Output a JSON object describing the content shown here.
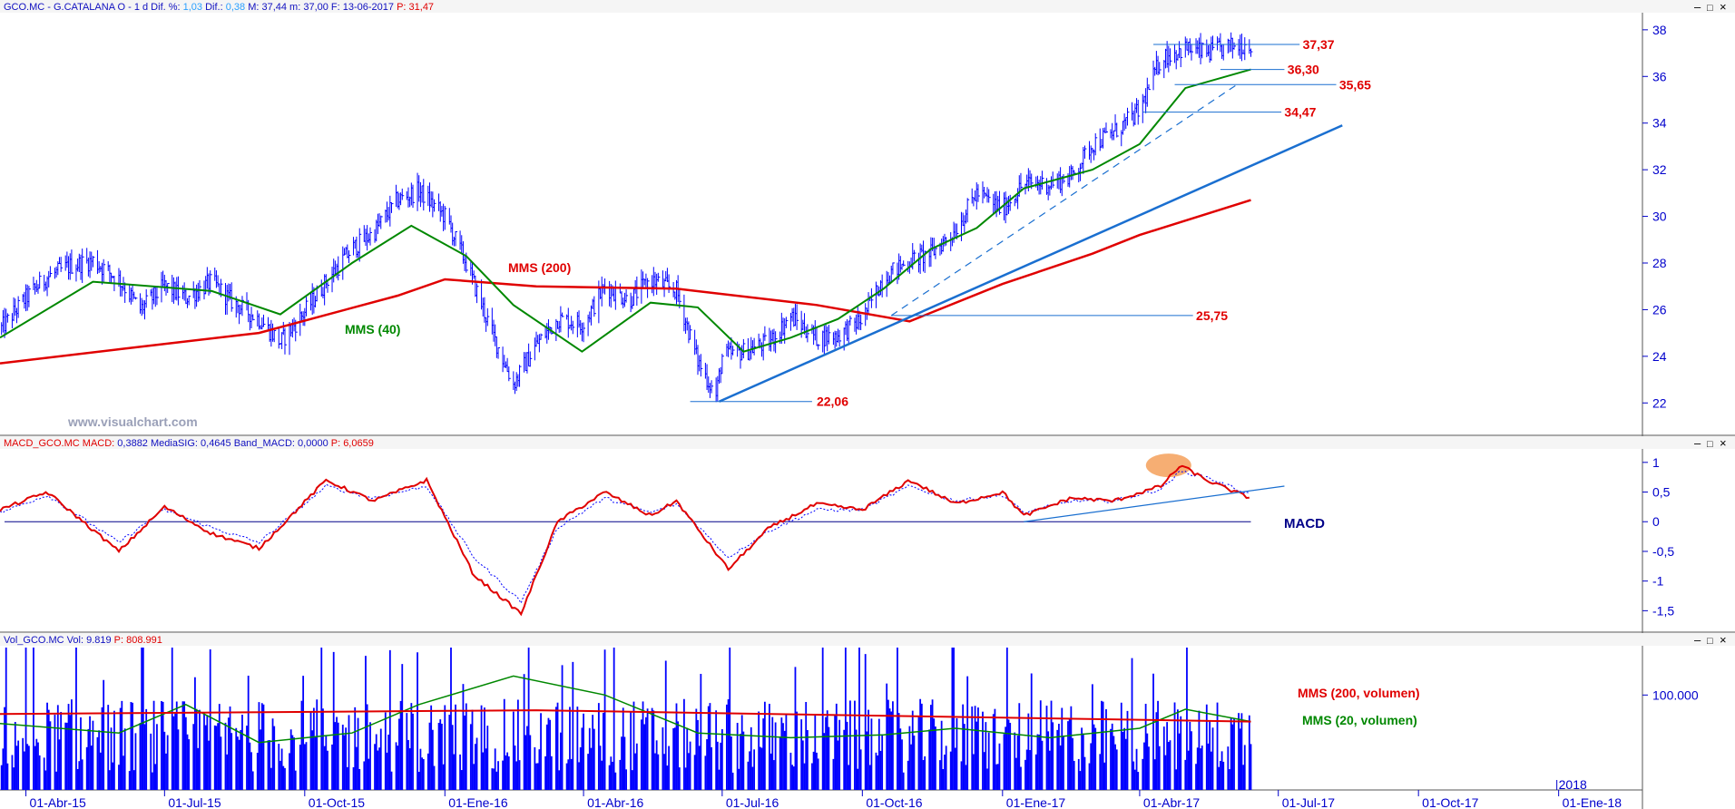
{
  "colors": {
    "blue": "#0000ff",
    "red": "#e00000",
    "green": "#008800",
    "axis": "#0000cc",
    "trend": "#1a6fd0",
    "orange": "#f5a05a",
    "navy": "#000088"
  },
  "panels": {
    "price": {
      "header": [
        {
          "t": "GCO.MC - G.CATALANA O - 1 d Dif. %: ",
          "c": "#1010c0"
        },
        {
          "t": "1,03",
          "c": "#2aa0ff"
        },
        {
          "t": " Dif.: ",
          "c": "#1010c0"
        },
        {
          "t": "0,38",
          "c": "#2aa0ff"
        },
        {
          "t": " M: 37,44 m: 37,00 F: 13-06-2017 ",
          "c": "#1010c0"
        },
        {
          "t": "P: 31,47",
          "c": "#e00000"
        }
      ],
      "ylim": [
        21,
        38.5
      ],
      "ticks": [
        {
          "v": 22,
          "l": "22"
        },
        {
          "v": 24,
          "l": "24"
        },
        {
          "v": 26,
          "l": "26"
        },
        {
          "v": 28,
          "l": "28"
        },
        {
          "v": 30,
          "l": "30"
        },
        {
          "v": 32,
          "l": "32"
        },
        {
          "v": 34,
          "l": "34"
        },
        {
          "v": 36,
          "l": "36"
        },
        {
          "v": 38,
          "l": "38"
        }
      ],
      "labels": {
        "mms200": "MMS (200)",
        "mms40": "MMS (40)",
        "watermark": "www.visualchart.com"
      },
      "levels": [
        {
          "v": 37.37,
          "l": "37,37",
          "from": "2017-04-10",
          "to": "2017-07-15",
          "tx": "2017-07-17"
        },
        {
          "v": 36.3,
          "l": "36,30",
          "from": "2017-05-24",
          "to": "2017-07-05",
          "tx": "2017-07-07"
        },
        {
          "v": 35.65,
          "l": "35,65",
          "from": "2017-04-24",
          "to": "2017-08-08",
          "tx": "2017-08-10"
        },
        {
          "v": 34.47,
          "l": "34,47",
          "from": "2017-04-03",
          "to": "2017-07-03",
          "tx": "2017-07-05"
        },
        {
          "v": 25.75,
          "l": "25,75",
          "from": "2016-10-20",
          "to": "2017-05-06",
          "tx": "2017-05-08"
        },
        {
          "v": 22.06,
          "l": "22,06",
          "from": "2016-06-10",
          "to": "2016-08-29",
          "tx": "2016-09-01"
        }
      ],
      "trendlines": [
        {
          "x": [
            "2016-06-29",
            "2017-08-12"
          ],
          "y": [
            22.06,
            33.9
          ],
          "dash": false
        },
        {
          "x": [
            "2016-10-20",
            "2017-06-05"
          ],
          "y": [
            25.75,
            35.7
          ],
          "dash": true
        }
      ]
    },
    "macd": {
      "header": [
        {
          "t": "MACD_GCO.MC MACD: ",
          "c": "#e00000"
        },
        {
          "t": "0,3882",
          "c": "#1010c0"
        },
        {
          "t": " MediaSIG: 0,4645",
          "c": "#1010c0"
        },
        {
          "t": " Band_MACD: 0,0000",
          "c": "#1010c0"
        },
        {
          "t": " P: 6,0659",
          "c": "#e00000"
        }
      ],
      "ylim": [
        -1.8,
        1.15
      ],
      "ticks": [
        {
          "v": 1,
          "l": "1"
        },
        {
          "v": 0.5,
          "l": "0,5"
        },
        {
          "v": 0,
          "l": "0"
        },
        {
          "v": -0.5,
          "l": "-0,5"
        },
        {
          "v": -1,
          "l": "-1"
        },
        {
          "v": -1.5,
          "l": "-1,5"
        }
      ],
      "label": "MACD",
      "trendline": {
        "x": [
          "2017-01-15",
          "2017-07-05"
        ],
        "y": [
          0,
          0.6
        ]
      },
      "highlight": {
        "x": "2017-04-20",
        "y": 0.95
      }
    },
    "volume": {
      "header": [
        {
          "t": "Vol_GCO.MC Vol: 9.819 ",
          "c": "#1010c0"
        },
        {
          "t": "P: 808.991",
          "c": "#e00000"
        }
      ],
      "ticks": [
        {
          "v": 100000,
          "l": "100.000"
        }
      ],
      "labels": {
        "mms200": "MMS (200, volumen)",
        "mms20": "MMS (20, volumen)"
      }
    }
  },
  "x_axis": {
    "start": "2015-03-15",
    "end": "2018-02-25",
    "ticks": [
      {
        "d": "2015-04-01",
        "l": "01-Abr-15"
      },
      {
        "d": "2015-07-01",
        "l": "01-Jul-15"
      },
      {
        "d": "2015-10-01",
        "l": "01-Oct-15"
      },
      {
        "d": "2016-01-01",
        "l": "01-Ene-16"
      },
      {
        "d": "2016-04-01",
        "l": "01-Abr-16"
      },
      {
        "d": "2016-07-01",
        "l": "01-Jul-16"
      },
      {
        "d": "2016-10-01",
        "l": "01-Oct-16"
      },
      {
        "d": "2017-01-01",
        "l": "01-Ene-17"
      },
      {
        "d": "2017-04-01",
        "l": "01-Abr-17"
      },
      {
        "d": "2017-07-01",
        "l": "01-Jul-17"
      },
      {
        "d": "2017-10-01",
        "l": "01-Oct-17"
      },
      {
        "d": "2018-01-01",
        "l": "01-Ene-18"
      }
    ],
    "year_mark": {
      "d": "2018-01-01",
      "l": "2018"
    }
  },
  "chart_data": {
    "type": "line",
    "x_type": "date",
    "price_close": {
      "x": [
        "2015-03-16",
        "2015-04-01",
        "2015-04-15",
        "2015-05-01",
        "2015-05-15",
        "2015-06-01",
        "2015-06-15",
        "2015-07-01",
        "2015-07-15",
        "2015-08-01",
        "2015-08-15",
        "2015-09-01",
        "2015-09-15",
        "2015-10-01",
        "2015-10-15",
        "2015-11-01",
        "2015-11-15",
        "2015-12-01",
        "2015-12-15",
        "2016-01-01",
        "2016-01-15",
        "2016-02-01",
        "2016-02-15",
        "2016-03-01",
        "2016-03-15",
        "2016-04-01",
        "2016-04-15",
        "2016-05-01",
        "2016-05-15",
        "2016-06-01",
        "2016-06-15",
        "2016-06-27",
        "2016-07-01",
        "2016-07-15",
        "2016-08-01",
        "2016-08-15",
        "2016-09-01",
        "2016-09-15",
        "2016-10-01",
        "2016-10-15",
        "2016-11-01",
        "2016-11-15",
        "2016-12-01",
        "2016-12-15",
        "2017-01-01",
        "2017-01-15",
        "2017-02-01",
        "2017-02-15",
        "2017-03-01",
        "2017-03-15",
        "2017-04-01",
        "2017-04-15",
        "2017-05-01",
        "2017-05-15",
        "2017-06-01",
        "2017-06-13"
      ],
      "y": [
        25.2,
        26.5,
        27.4,
        27.9,
        28.1,
        27.3,
        26.0,
        27.0,
        26.5,
        27.2,
        26.3,
        25.6,
        24.6,
        25.9,
        27.2,
        28.6,
        29.3,
        30.7,
        31.1,
        30.0,
        28.0,
        25.0,
        22.8,
        24.5,
        25.6,
        25.4,
        27.0,
        26.4,
        27.3,
        26.8,
        23.8,
        22.3,
        24.0,
        24.2,
        24.6,
        25.7,
        24.8,
        24.9,
        25.6,
        27.4,
        28.1,
        28.4,
        29.4,
        31.0,
        30.3,
        31.4,
        31.4,
        31.7,
        33.1,
        33.6,
        34.5,
        36.8,
        37.2,
        37.0,
        37.3,
        37.4
      ]
    },
    "mms200": {
      "x": [
        "2015-03-15",
        "2015-06-01",
        "2015-09-01",
        "2015-12-01",
        "2016-01-01",
        "2016-03-01",
        "2016-06-01",
        "2016-09-01",
        "2016-11-01",
        "2017-01-01",
        "2017-03-01",
        "2017-04-01",
        "2017-06-13"
      ],
      "y": [
        23.7,
        24.3,
        25.0,
        26.6,
        27.3,
        27.0,
        26.9,
        26.2,
        25.5,
        27.1,
        28.4,
        29.2,
        30.7
      ]
    },
    "mms40": {
      "x": [
        "2015-03-15",
        "2015-05-15",
        "2015-08-01",
        "2015-09-15",
        "2015-11-01",
        "2015-12-10",
        "2016-01-15",
        "2016-02-15",
        "2016-03-31",
        "2016-05-15",
        "2016-06-15",
        "2016-07-15",
        "2016-08-15",
        "2016-09-15",
        "2016-10-15",
        "2016-11-15",
        "2016-12-15",
        "2017-01-15",
        "2017-03-01",
        "2017-04-01",
        "2017-05-01",
        "2017-06-13"
      ],
      "y": [
        24.8,
        27.2,
        26.8,
        25.8,
        28.0,
        29.6,
        28.3,
        26.2,
        24.2,
        26.3,
        26.1,
        24.2,
        24.8,
        25.6,
        26.9,
        28.6,
        29.5,
        31.2,
        32.0,
        33.1,
        35.5,
        36.3
      ]
    },
    "macd": {
      "x": [
        "2015-03-15",
        "2015-04-15",
        "2015-06-01",
        "2015-07-01",
        "2015-08-01",
        "2015-09-01",
        "2015-10-15",
        "2015-11-15",
        "2015-12-20",
        "2016-01-20",
        "2016-02-20",
        "2016-03-15",
        "2016-04-15",
        "2016-05-15",
        "2016-06-01",
        "2016-07-05",
        "2016-08-01",
        "2016-09-01",
        "2016-10-01",
        "2016-11-01",
        "2016-12-01",
        "2017-01-01",
        "2017-01-15",
        "2017-02-15",
        "2017-03-15",
        "2017-04-15",
        "2017-04-28",
        "2017-05-15",
        "2017-06-13"
      ],
      "y": [
        0.2,
        0.5,
        -0.5,
        0.25,
        -0.2,
        -0.45,
        0.7,
        0.35,
        0.7,
        -0.9,
        -1.55,
        0.0,
        0.5,
        0.1,
        0.35,
        -0.8,
        -0.1,
        0.3,
        0.2,
        0.7,
        0.3,
        0.5,
        0.1,
        0.4,
        0.35,
        0.6,
        0.95,
        0.7,
        0.39
      ]
    },
    "macd_signal": {
      "x": [
        "2015-03-15",
        "2015-04-15",
        "2015-06-01",
        "2015-07-01",
        "2015-08-01",
        "2015-09-01",
        "2015-10-15",
        "2015-11-15",
        "2015-12-20",
        "2016-01-20",
        "2016-02-20",
        "2016-03-15",
        "2016-04-15",
        "2016-05-15",
        "2016-06-01",
        "2016-07-05",
        "2016-08-01",
        "2016-09-01",
        "2016-10-01",
        "2016-11-01",
        "2016-12-01",
        "2017-01-01",
        "2017-01-15",
        "2017-02-15",
        "2017-03-15",
        "2017-04-15",
        "2017-04-28",
        "2017-05-15",
        "2017-06-13"
      ],
      "y": [
        0.15,
        0.45,
        -0.35,
        0.2,
        -0.1,
        -0.35,
        0.6,
        0.4,
        0.6,
        -0.6,
        -1.35,
        -0.1,
        0.4,
        0.15,
        0.3,
        -0.6,
        -0.15,
        0.2,
        0.2,
        0.6,
        0.35,
        0.45,
        0.15,
        0.35,
        0.35,
        0.55,
        0.85,
        0.75,
        0.46
      ]
    },
    "volume": {
      "avg": 60000,
      "max": 150000,
      "mms200": {
        "x": [
          "2015-03-15",
          "2016-03-01",
          "2017-06-13"
        ],
        "y": [
          80000,
          84000,
          72000
        ]
      },
      "mms20": {
        "x": [
          "2015-03-15",
          "2015-06-01",
          "2015-07-15",
          "2015-09-01",
          "2015-11-01",
          "2015-12-15",
          "2016-02-15",
          "2016-04-15",
          "2016-06-15",
          "2016-08-15",
          "2016-10-15",
          "2016-12-01",
          "2017-02-01",
          "2017-04-01",
          "2017-05-01",
          "2017-06-13"
        ],
        "y": [
          70000,
          60000,
          90000,
          50000,
          60000,
          90000,
          120000,
          100000,
          60000,
          55000,
          58000,
          65000,
          55000,
          65000,
          85000,
          72000
        ]
      }
    }
  }
}
